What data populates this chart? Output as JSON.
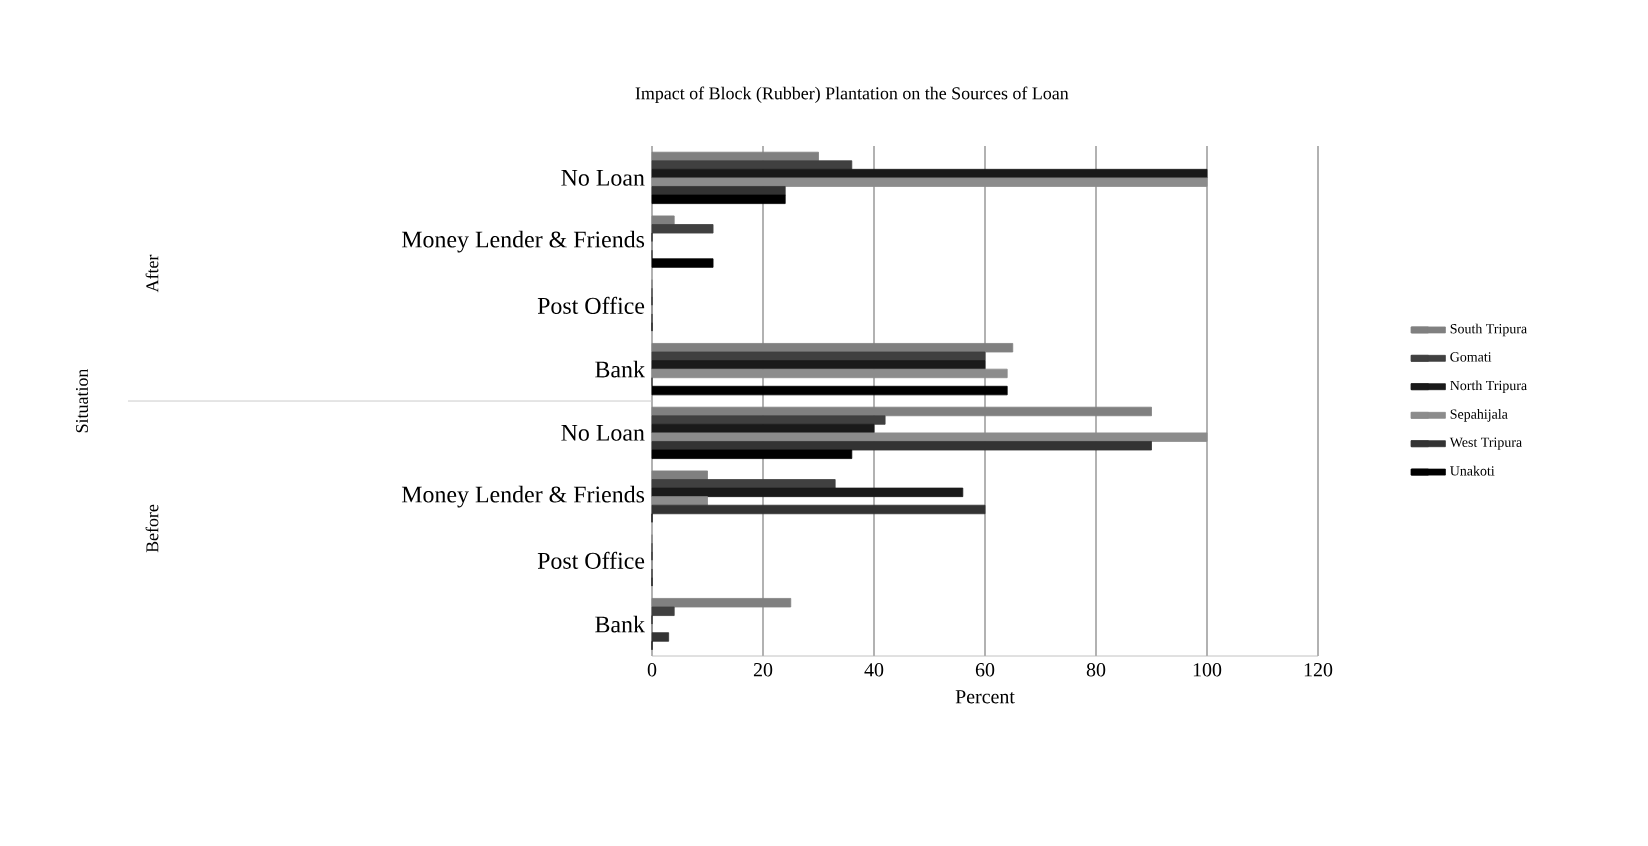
{
  "chart_data": {
    "type": "bar",
    "orientation": "horizontal",
    "title": "Impact of Block (Rubber) Plantation on the Sources of Loan",
    "xlabel": "Percent",
    "annotations": [
      "After",
      "Before",
      "Situation"
    ],
    "categories": [
      "No Loan",
      "Money Lender & Friends",
      "Post Office",
      "Bank",
      "No Loan",
      "Money Lender & Friends",
      "Post Office",
      "Bank"
    ],
    "series": [
      {
        "name": "South Tripura",
        "color": "#808080",
        "values": [
          30,
          4,
          0,
          65,
          90,
          10,
          0,
          25
        ]
      },
      {
        "name": "Gomati",
        "color": "#404040",
        "values": [
          36,
          11,
          0,
          60,
          42,
          33,
          0,
          4
        ]
      },
      {
        "name": "North Tripura",
        "color": "#1a1a1a",
        "values": [
          100,
          0,
          0,
          60,
          40,
          56,
          0,
          0
        ]
      },
      {
        "name": "Sepahijala",
        "color": "#8c8c8c",
        "values": [
          100,
          0,
          0,
          64,
          100,
          10,
          0,
          0
        ]
      },
      {
        "name": "West Tripura",
        "color": "#333333",
        "values": [
          24,
          0,
          0,
          0,
          90,
          60,
          0,
          3
        ]
      },
      {
        "name": "Unakoti",
        "color": "#000000",
        "values": [
          24,
          11,
          0,
          64,
          36,
          0,
          0,
          0
        ]
      }
    ],
    "xlim": [
      0,
      120
    ],
    "xticks": [
      0,
      20,
      40,
      60,
      80,
      100,
      120
    ],
    "grid": "x",
    "legend": "right"
  }
}
